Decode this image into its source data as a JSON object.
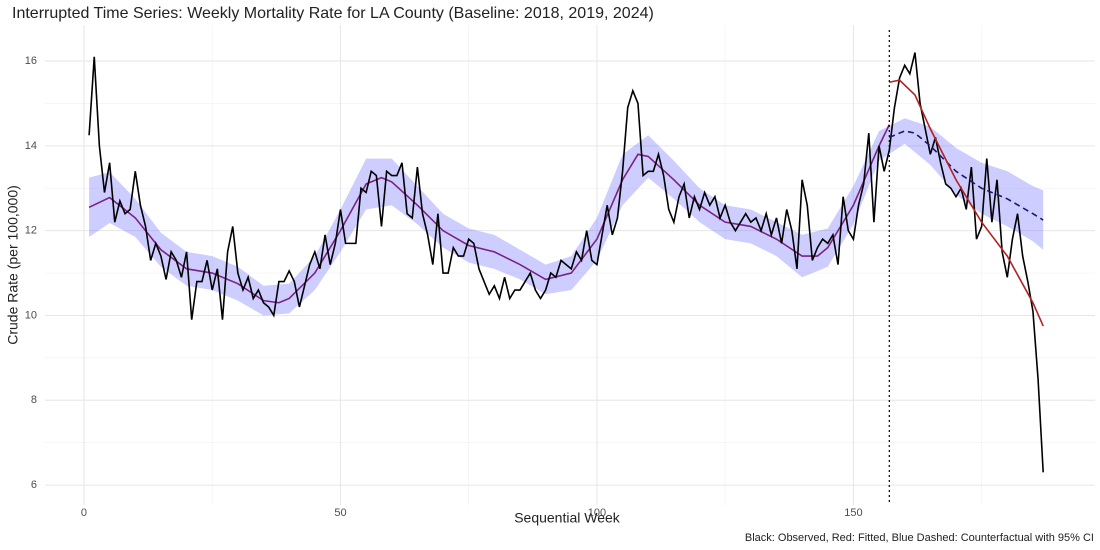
{
  "chart_data": {
    "type": "line",
    "title": "Interrupted Time Series: Weekly Mortality Rate for LA County (Baseline: 2018, 2019, 2024)",
    "x_label": "Sequential Week",
    "y_label": "Crude Rate (per 100,000)",
    "caption": "Black: Observed, Red: Fitted, Blue Dashed: Counterfactual with 95% CI",
    "xlim": [
      -7.6,
      197.1
    ],
    "ylim": [
      5.53,
      16.85
    ],
    "xticks": [
      0,
      50,
      100,
      150
    ],
    "yticks": [
      6,
      8,
      10,
      12,
      14,
      16
    ],
    "grid": true,
    "intervention_x": 157,
    "band": {
      "color": "#5a5aff",
      "x": [
        1,
        5,
        10,
        15,
        20,
        25,
        30,
        35,
        40,
        45,
        50,
        55,
        60,
        65,
        70,
        75,
        80,
        85,
        90,
        95,
        100,
        105,
        110,
        115,
        120,
        125,
        130,
        135,
        140,
        145,
        150,
        155,
        160,
        165,
        170,
        175,
        180,
        185,
        187
      ],
      "lower": [
        11.85,
        12.18,
        11.85,
        11.15,
        10.7,
        10.6,
        10.35,
        10.0,
        10.05,
        10.6,
        11.5,
        12.5,
        12.6,
        12.15,
        11.6,
        11.25,
        11.1,
        10.85,
        10.5,
        10.6,
        11.3,
        12.6,
        13.25,
        12.75,
        12.2,
        11.8,
        11.7,
        11.4,
        10.9,
        11.15,
        12.15,
        13.65,
        14.05,
        13.55,
        12.85,
        12.4,
        12.1,
        11.75,
        11.55
      ],
      "upper": [
        13.25,
        13.38,
        12.75,
        11.95,
        11.5,
        11.4,
        11.15,
        10.7,
        10.75,
        11.4,
        12.5,
        13.7,
        13.7,
        13.05,
        12.4,
        12.05,
        11.9,
        11.55,
        11.2,
        11.4,
        12.3,
        13.8,
        14.25,
        13.65,
        13.0,
        12.6,
        12.5,
        12.2,
        11.9,
        12.05,
        13.05,
        14.35,
        14.65,
        14.45,
        13.95,
        13.6,
        13.4,
        13.05,
        12.95
      ]
    },
    "series": [
      {
        "color": "#8b0a50",
        "dash": false,
        "x": [
          1,
          5,
          10,
          15,
          20,
          25,
          30,
          35,
          38,
          40,
          45,
          50,
          55,
          58,
          60,
          65,
          70,
          75,
          80,
          85,
          90,
          95,
          100,
          105,
          108,
          110,
          115,
          120,
          125,
          130,
          135,
          140,
          143,
          145,
          150,
          155,
          157
        ],
        "values": [
          12.55,
          12.78,
          12.3,
          11.55,
          11.1,
          11.0,
          10.75,
          10.35,
          10.3,
          10.4,
          11.0,
          12.0,
          13.1,
          13.25,
          13.15,
          12.6,
          12.0,
          11.65,
          11.5,
          11.2,
          10.85,
          11.0,
          11.8,
          13.2,
          13.8,
          13.75,
          13.2,
          12.6,
          12.2,
          12.1,
          11.8,
          11.4,
          11.4,
          11.6,
          12.6,
          14.0,
          14.5
        ]
      },
      {
        "color": "#b22222",
        "dash": false,
        "x": [
          157,
          159,
          162,
          165,
          170,
          175,
          180,
          185,
          187
        ],
        "values": [
          15.5,
          15.55,
          15.2,
          14.4,
          13.2,
          12.2,
          11.4,
          10.3,
          9.75
        ]
      },
      {
        "color": "#1a1a6e",
        "dash": true,
        "x": [
          157,
          160,
          162,
          165,
          170,
          175,
          180,
          185,
          187
        ],
        "values": [
          14.2,
          14.35,
          14.3,
          14.0,
          13.4,
          13.0,
          12.75,
          12.4,
          12.25
        ]
      },
      {
        "color": "#000000",
        "dash": false,
        "x": [
          1,
          2,
          3,
          4,
          5,
          6,
          7,
          8,
          9,
          10,
          11,
          12,
          13,
          14,
          15,
          16,
          17,
          18,
          19,
          20,
          21,
          22,
          23,
          24,
          25,
          26,
          27,
          28,
          29,
          30,
          31,
          32,
          33,
          34,
          35,
          36,
          37,
          38,
          39,
          40,
          41,
          42,
          43,
          44,
          45,
          46,
          47,
          48,
          49,
          50,
          51,
          52,
          53,
          54,
          55,
          56,
          57,
          58,
          59,
          60,
          61,
          62,
          63,
          64,
          65,
          66,
          67,
          68,
          69,
          70,
          71,
          72,
          73,
          74,
          75,
          76,
          77,
          78,
          79,
          80,
          81,
          82,
          83,
          84,
          85,
          86,
          87,
          88,
          89,
          90,
          91,
          92,
          93,
          94,
          95,
          96,
          97,
          98,
          99,
          100,
          101,
          102,
          103,
          104,
          105,
          106,
          107,
          108,
          109,
          110,
          111,
          112,
          113,
          114,
          115,
          116,
          117,
          118,
          119,
          120,
          121,
          122,
          123,
          124,
          125,
          126,
          127,
          128,
          129,
          130,
          131,
          132,
          133,
          134,
          135,
          136,
          137,
          138,
          139,
          140,
          141,
          142,
          143,
          144,
          145,
          146,
          147,
          148,
          149,
          150,
          151,
          152,
          153,
          154,
          155,
          156,
          157,
          158,
          159,
          160,
          161,
          162,
          163,
          164,
          165,
          166,
          167,
          168,
          169,
          170,
          171,
          172,
          173,
          174,
          175,
          176,
          177,
          178,
          179,
          180,
          181,
          182,
          183,
          184,
          185,
          186,
          187
        ],
        "values": [
          14.25,
          16.1,
          14.0,
          12.9,
          13.6,
          12.2,
          12.7,
          12.4,
          12.5,
          13.4,
          12.6,
          12.1,
          11.3,
          11.7,
          11.4,
          10.85,
          11.5,
          11.3,
          10.9,
          11.5,
          9.9,
          10.8,
          10.8,
          11.3,
          10.6,
          11.1,
          9.9,
          11.5,
          12.1,
          11.0,
          10.6,
          10.9,
          10.4,
          10.6,
          10.3,
          10.2,
          10.0,
          10.8,
          10.8,
          11.05,
          10.8,
          10.2,
          10.7,
          11.2,
          11.5,
          11.1,
          11.9,
          11.2,
          11.7,
          12.5,
          11.7,
          11.7,
          11.7,
          13.0,
          12.9,
          13.4,
          13.3,
          12.1,
          13.4,
          13.3,
          13.3,
          13.6,
          12.4,
          12.3,
          13.5,
          12.4,
          11.9,
          11.2,
          12.4,
          11.0,
          11.0,
          11.6,
          11.4,
          11.4,
          11.8,
          11.7,
          11.1,
          10.8,
          10.5,
          10.7,
          10.4,
          10.9,
          10.4,
          10.6,
          10.6,
          10.8,
          11.0,
          10.6,
          10.4,
          10.6,
          11.0,
          10.9,
          11.3,
          11.2,
          11.1,
          11.5,
          11.3,
          12.0,
          11.3,
          11.2,
          11.9,
          12.6,
          11.9,
          12.3,
          13.4,
          14.9,
          15.3,
          15.0,
          13.3,
          13.4,
          13.4,
          13.8,
          13.3,
          12.5,
          12.2,
          12.8,
          13.1,
          12.3,
          12.8,
          12.5,
          12.9,
          12.6,
          12.8,
          12.3,
          12.6,
          12.2,
          12.0,
          12.2,
          12.4,
          12.2,
          12.3,
          12.0,
          12.4,
          11.9,
          12.3,
          11.7,
          12.5,
          12.0,
          11.1,
          13.2,
          12.6,
          11.3,
          11.6,
          11.8,
          11.7,
          11.9,
          11.2,
          12.8,
          12.0,
          11.8,
          12.6,
          13.1,
          14.3,
          12.2,
          14.0,
          13.4,
          13.9,
          14.9,
          15.6,
          15.9,
          15.7,
          16.2,
          15.0,
          14.4,
          13.8,
          14.2,
          13.6,
          13.1,
          13.0,
          12.8,
          13.0,
          12.5,
          13.5,
          11.8,
          12.1,
          13.7,
          12.2,
          13.2,
          11.5,
          10.9,
          11.8,
          12.4,
          11.4,
          10.8,
          10.1,
          8.5,
          6.3
        ]
      }
    ]
  }
}
